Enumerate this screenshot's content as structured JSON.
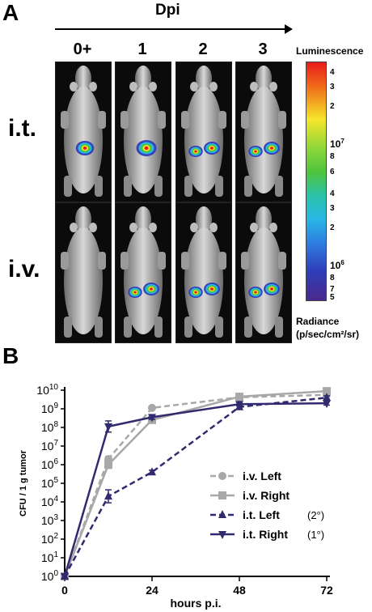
{
  "panel_a": {
    "label": "A",
    "axis_title": "Dpi",
    "columns": [
      "0+",
      "1",
      "2",
      "3"
    ],
    "rows": [
      "i.t.",
      "i.v."
    ],
    "scale": {
      "title": "Luminescence",
      "ticks": [
        "4",
        "3",
        "2",
        "10",
        "8",
        "6",
        "4",
        "3",
        "2",
        "10",
        "8",
        "7",
        "5"
      ],
      "major_exponents": [
        "7",
        "6"
      ],
      "footer_line1": "Radiance",
      "footer_line2": "(p/sec/cm²/sr)"
    },
    "colors": {
      "red": "#e81c1c",
      "yellow": "#f5e62a",
      "green": "#4ec43c",
      "cyan": "#27b7e6",
      "blue": "#2f3db8",
      "purple": "#4a2a8c"
    },
    "signals": {
      "i.t.": [
        [
          "single-small"
        ],
        [
          "single-large"
        ],
        [
          "double"
        ],
        [
          "double"
        ]
      ],
      "i.v.": [
        [],
        [
          "double"
        ],
        [
          "double"
        ],
        [
          "double"
        ]
      ]
    }
  },
  "panel_b": {
    "label": "B",
    "chart_data": {
      "type": "line",
      "xlabel": "hours p.i.",
      "ylabel": "CFU / 1 g tumor",
      "x_ticks": [
        0,
        24,
        48,
        72
      ],
      "y_log_range": [
        0,
        10
      ],
      "y_tick_base": "10",
      "y_tick_exponents": [
        "0",
        "1",
        "2",
        "3",
        "4",
        "5",
        "6",
        "7",
        "8",
        "9",
        "10"
      ],
      "series": [
        {
          "name": "i.v. Left",
          "note": "",
          "color": "#a8a8a8",
          "dash": true,
          "marker": "circle",
          "x": [
            0,
            12,
            24,
            48,
            72
          ],
          "log10_y": [
            0,
            6.3,
            9.05,
            9.62,
            9.75
          ],
          "err": [
            0,
            0.15,
            0.05,
            0.05,
            0.05
          ]
        },
        {
          "name": "i.v. Right",
          "note": "",
          "color": "#a8a8a8",
          "dash": false,
          "marker": "square",
          "x": [
            0,
            12,
            24,
            48,
            72
          ],
          "log10_y": [
            0,
            6.0,
            8.4,
            9.65,
            9.95
          ],
          "err": [
            0,
            0.2,
            0.1,
            0.05,
            0.05
          ]
        },
        {
          "name": "i.t. Left",
          "note": "(2°)",
          "color": "#312a6e",
          "dash": true,
          "marker": "triangle-up",
          "x": [
            0,
            12,
            24,
            48,
            72
          ],
          "log10_y": [
            0,
            4.3,
            5.6,
            9.1,
            9.6
          ],
          "err": [
            0,
            0.35,
            0.1,
            0.1,
            0.1
          ]
        },
        {
          "name": "i.t. Right",
          "note": "(1°)",
          "color": "#312a6e",
          "dash": false,
          "marker": "triangle-down",
          "x": [
            0,
            12,
            24,
            48,
            72
          ],
          "log10_y": [
            0,
            8.05,
            8.55,
            9.25,
            9.3
          ],
          "err": [
            0,
            0.3,
            0.12,
            0.1,
            0.1
          ]
        }
      ]
    }
  }
}
